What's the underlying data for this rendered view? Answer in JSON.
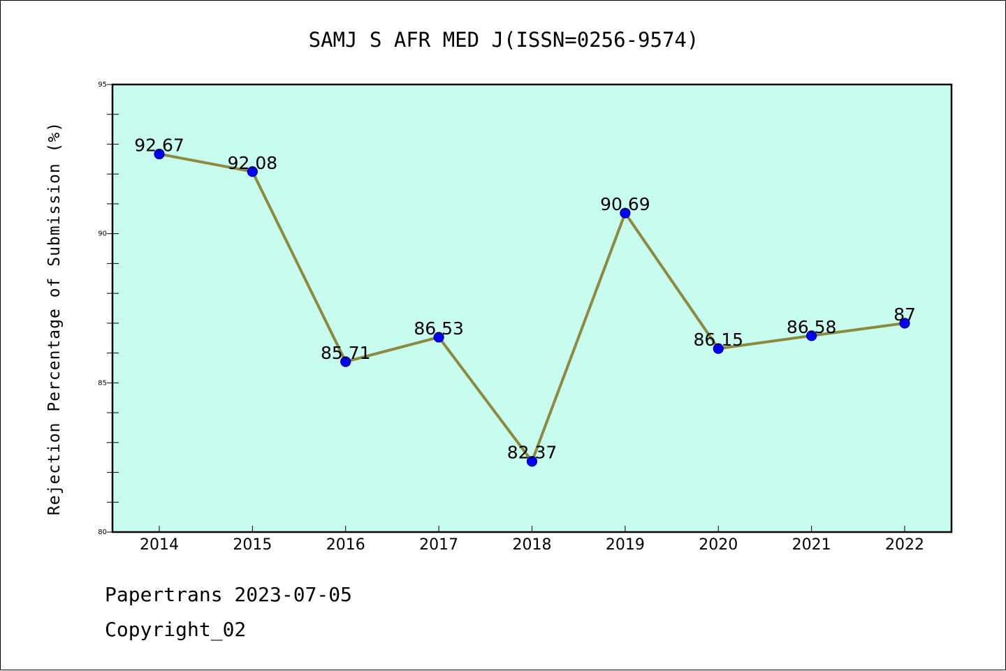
{
  "footer": {
    "line1": "Papertrans 2023-07-05",
    "line2": "Copyright_02"
  },
  "chart_data": {
    "type": "line",
    "title": "SAMJ S AFR MED J(ISSN=0256-9574)",
    "xlabel": "",
    "ylabel": "Rejection Percentage of Submission (%)",
    "categories": [
      "2014",
      "2015",
      "2016",
      "2017",
      "2018",
      "2019",
      "2020",
      "2021",
      "2022"
    ],
    "values": [
      92.67,
      92.08,
      85.71,
      86.53,
      82.37,
      90.69,
      86.15,
      86.58,
      87
    ],
    "data_labels": [
      "92.67",
      "92.08",
      "85.71",
      "86.53",
      "82.37",
      "90.69",
      "86.15",
      "86.58",
      "87"
    ],
    "ylim": [
      80,
      95
    ],
    "yticks": [
      "80",
      "85",
      "90",
      "95"
    ],
    "grid": false,
    "colors": {
      "plot_background": "#c8fcee",
      "line": "#8b8a3e",
      "marker": "#0000ff",
      "marker_edge": "#00008b"
    }
  }
}
